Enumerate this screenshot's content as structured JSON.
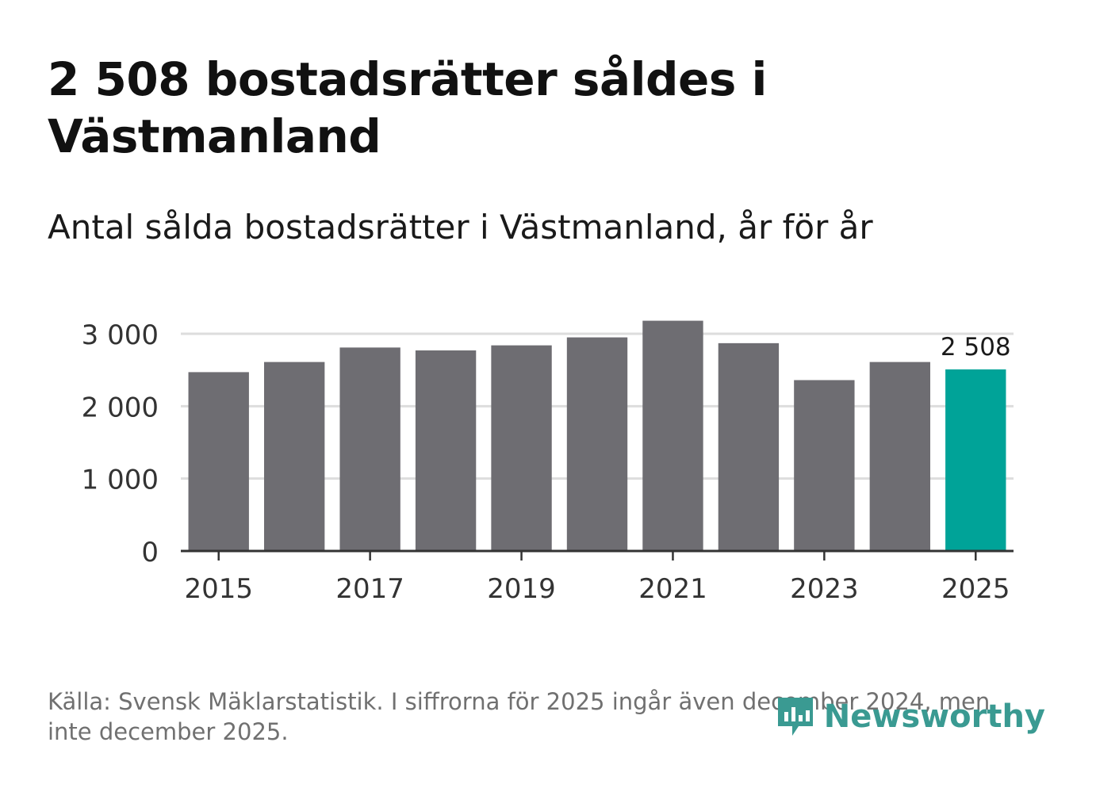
{
  "header": {
    "title": "2 508 bostadsrätter såldes i Västmanland",
    "subtitle": "Antal sålda bostadsrätter i Västmanland, år för år"
  },
  "footer": {
    "source": "Källa: Svensk Mäklarstatistik. I siffrorna för 2025 ingår även december 2024, men inte december 2025.",
    "brand": "Newsworthy"
  },
  "colors": {
    "bar": "#6e6d72",
    "highlight": "#00a398",
    "grid": "#dddddd",
    "axis": "#333333",
    "brand": "#3a9a92"
  },
  "chart_data": {
    "type": "bar",
    "title": "Antal sålda bostadsrätter i Västmanland, år för år",
    "xlabel": "",
    "ylabel": "",
    "categories": [
      "2015",
      "2016",
      "2017",
      "2018",
      "2019",
      "2020",
      "2021",
      "2022",
      "2023",
      "2024",
      "2025"
    ],
    "values": [
      2470,
      2610,
      2810,
      2770,
      2840,
      2950,
      3180,
      2870,
      2360,
      2610,
      2508
    ],
    "ylim": [
      0,
      3000
    ],
    "yticks": [
      0,
      1000,
      2000,
      3000
    ],
    "ytick_labels": [
      "0",
      "1 000",
      "2 000",
      "3 000"
    ],
    "xtick_labels": [
      "2015",
      "2017",
      "2019",
      "2021",
      "2023",
      "2025"
    ],
    "highlight_index": 10,
    "highlight_label": "2 508",
    "grid": true
  }
}
